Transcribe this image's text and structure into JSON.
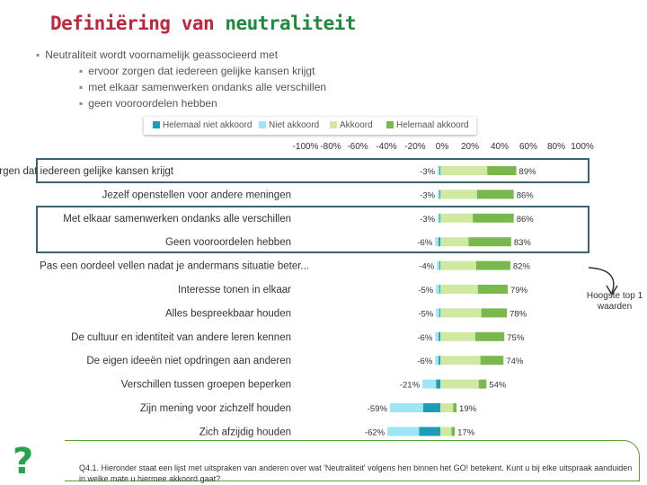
{
  "title": {
    "part1": "Definiëring van",
    "part2": "neutraliteit"
  },
  "bullets": {
    "main": "Neutraliteit wordt voornamelijk geassocieerd met",
    "sub": [
      "ervoor zorgen dat iedereen gelijke kansen krijgt",
      "met elkaar samenwerken ondanks alle verschillen",
      "geen vooroordelen hebben"
    ]
  },
  "colors": {
    "helemaal_niet": "#1e9cb4",
    "niet": "#9ee6f5",
    "akkoord": "#cfeaa0",
    "helemaal": "#79b84c",
    "title_red": "#c0263c",
    "title_green": "#1e8a3c",
    "highlight_border": "#3d6270",
    "arrow": "#333333"
  },
  "chart_data": {
    "type": "bar",
    "orientation": "horizontal",
    "stacked": "diverging",
    "title": "",
    "xlabel": "",
    "ylabel": "",
    "xlim": [
      -100,
      100
    ],
    "x_ticks": [
      "-100%",
      "-80%",
      "-60%",
      "-40%",
      "-20%",
      "0%",
      "20%",
      "40%",
      "60%",
      "80%",
      "100%"
    ],
    "legend": {
      "position": "top",
      "entries": [
        "Helemaal niet akkoord",
        "Niet akkoord",
        "Akkoord",
        "Helemaal akkoord"
      ]
    },
    "categories": [
      "Er voor zorgen dat iedereen gelijke kansen krijgt",
      "Jezelf openstellen voor andere meningen",
      "Met elkaar samenwerken ondanks alle verschillen",
      "Geen vooroordelen hebben",
      "Pas een oordeel vellen nadat je andermans situatie beter...",
      "Interesse tonen in elkaar",
      "Alles bespreekbaar houden",
      "De cultuur en identiteit van andere leren kennen",
      "De eigen ideeën niet opdringen aan anderen",
      "Verschillen tussen groepen beperken",
      "Zijn mening voor zichzelf houden",
      "Zich afzijdig houden"
    ],
    "series": [
      {
        "name": "Helemaal niet akkoord",
        "values": [
          -1,
          -1,
          -1,
          -2,
          -1,
          -1,
          -1,
          -2,
          -2,
          -5,
          -20,
          -25
        ]
      },
      {
        "name": "Niet akkoord",
        "values": [
          -2,
          -2,
          -2,
          -4,
          -3,
          -4,
          -4,
          -4,
          -4,
          -16,
          -39,
          -37
        ]
      },
      {
        "name": "Akkoord",
        "values": [
          55,
          43,
          38,
          33,
          42,
          44,
          48,
          41,
          47,
          45,
          15,
          13
        ]
      },
      {
        "name": "Helemaal akkoord",
        "values": [
          34,
          43,
          48,
          50,
          40,
          35,
          30,
          34,
          27,
          9,
          4,
          4
        ]
      }
    ],
    "totals_negative": [
      "-3%",
      "-3%",
      "-3%",
      "-6%",
      "-4%",
      "-5%",
      "-5%",
      "-6%",
      "-6%",
      "-21%",
      "-59%",
      "-62%"
    ],
    "totals_positive": [
      "89%",
      "86%",
      "86%",
      "83%",
      "82%",
      "79%",
      "78%",
      "75%",
      "74%",
      "54%",
      "19%",
      "17%"
    ],
    "highlighted_rows": [
      0,
      2,
      3
    ],
    "annotation": "Hoogste top 1 waarden"
  },
  "footer": {
    "question": "Q4.1. Hieronder staat een lijst met uitspraken van anderen over wat 'Neutraliteit' volgens hen binnen het GO! betekent. Kunt u bij elke uitspraak aanduiden in welke mate u hiermee akkoord gaat?",
    "icon_glyph": "?"
  }
}
